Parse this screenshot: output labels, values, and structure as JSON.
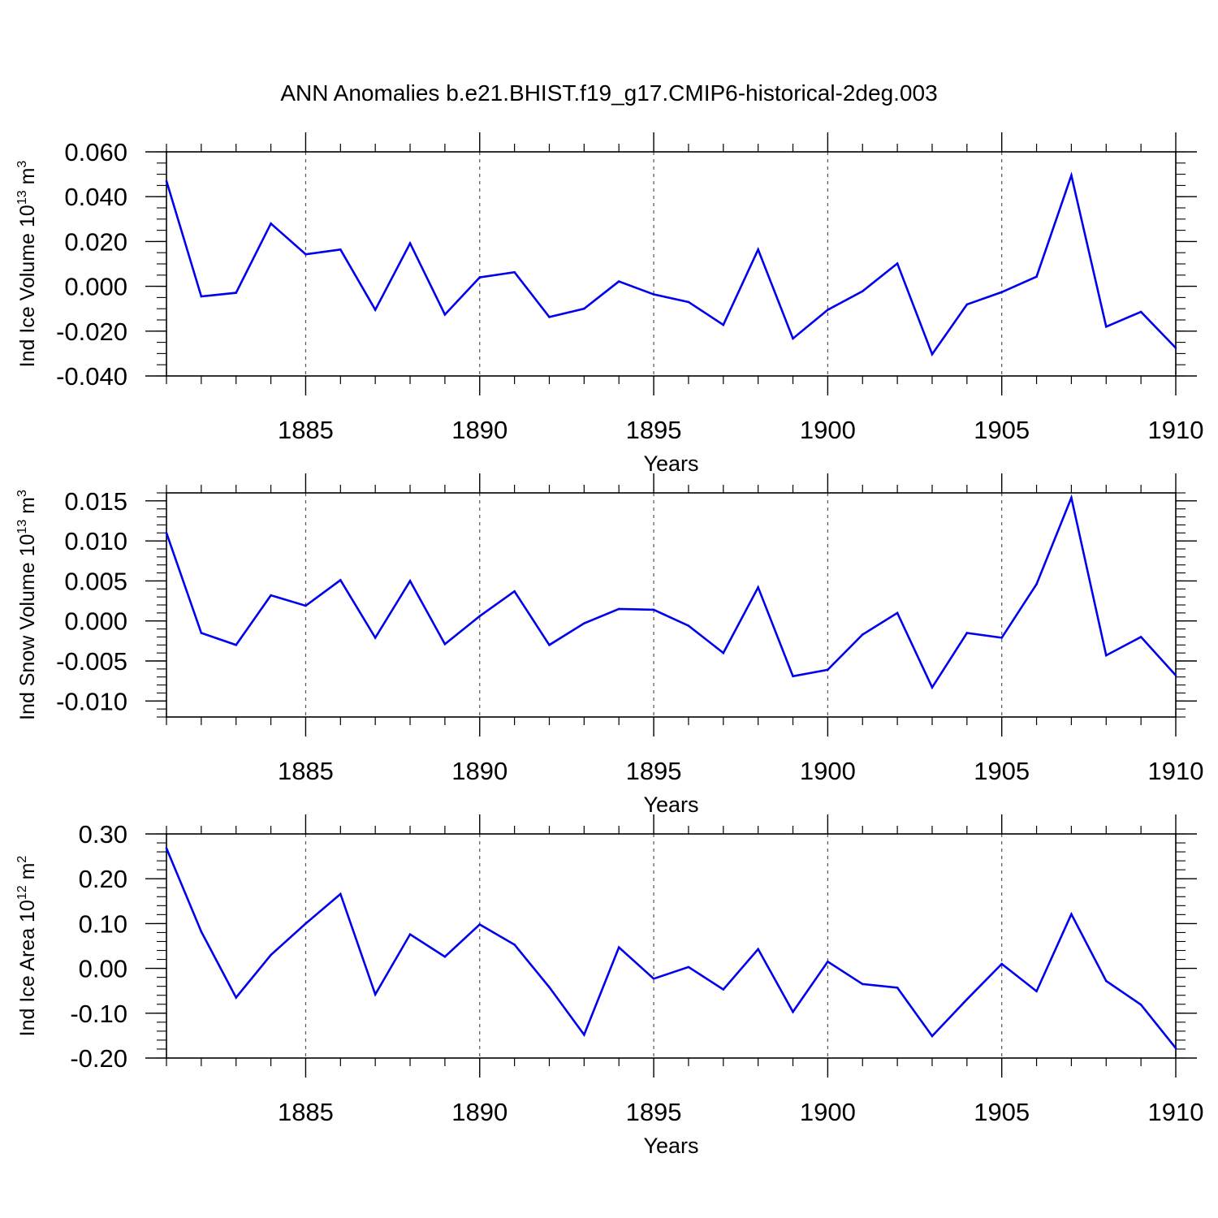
{
  "title": "ANN Anomalies b.e21.BHIST.f19_g17.CMIP6-historical-2deg.003",
  "colors": {
    "line": "#0000ee",
    "axis": "#000000",
    "grid": "#555555",
    "background": "#ffffff"
  },
  "chart_data": [
    {
      "type": "line",
      "title": "",
      "xlabel": "Years",
      "ylabel": {
        "text": "Ind Ice Volume 10",
        "exp": "13",
        "unit": " m",
        "unit_exp": "3"
      },
      "x": [
        1881,
        1882,
        1883,
        1884,
        1885,
        1886,
        1887,
        1888,
        1889,
        1890,
        1891,
        1892,
        1893,
        1894,
        1895,
        1896,
        1897,
        1898,
        1899,
        1900,
        1901,
        1902,
        1903,
        1904,
        1905,
        1906,
        1907,
        1908,
        1909,
        1910
      ],
      "series": [
        {
          "name": "Ind Ice Volume",
          "values": [
            0.047,
            -0.0045,
            -0.0029,
            0.028,
            0.0143,
            0.0164,
            -0.0105,
            0.0192,
            -0.0126,
            0.004,
            0.0063,
            -0.0137,
            -0.01,
            0.0022,
            -0.0036,
            -0.007,
            -0.0172,
            0.0164,
            -0.0233,
            -0.0105,
            -0.0022,
            0.0102,
            -0.0303,
            -0.0081,
            -0.0026,
            0.0043,
            0.0495,
            -0.018,
            -0.0114,
            -0.0275
          ]
        }
      ],
      "xlim": [
        1881,
        1910
      ],
      "ylim": [
        -0.04,
        0.06
      ],
      "x_ticks": [
        "1885",
        "1890",
        "1895",
        "1900",
        "1905",
        "1910"
      ],
      "y_ticks": [
        "0.060",
        "0.040",
        "0.020",
        "0.000",
        "-0.020",
        "-0.040"
      ],
      "grid": "x-major dashed"
    },
    {
      "type": "line",
      "title": "",
      "xlabel": "Years",
      "ylabel": {
        "text": "Ind Snow Volume 10",
        "exp": "13",
        "unit": " m",
        "unit_exp": "3"
      },
      "x": [
        1881,
        1882,
        1883,
        1884,
        1885,
        1886,
        1887,
        1888,
        1889,
        1890,
        1891,
        1892,
        1893,
        1894,
        1895,
        1896,
        1897,
        1898,
        1899,
        1900,
        1901,
        1902,
        1903,
        1904,
        1905,
        1906,
        1907,
        1908,
        1909,
        1910
      ],
      "series": [
        {
          "name": "Ind Snow Volume",
          "values": [
            0.011,
            -0.0015,
            -0.003,
            0.0032,
            0.0019,
            0.0051,
            -0.0021,
            0.005,
            -0.0029,
            0.0006,
            0.0037,
            -0.003,
            -0.0003,
            0.0015,
            0.0014,
            -0.0006,
            -0.004,
            0.0042,
            -0.0069,
            -0.0061,
            -0.0017,
            0.001,
            -0.0083,
            -0.0015,
            -0.0021,
            0.0046,
            0.0154,
            -0.0043,
            -0.002,
            -0.0068
          ]
        }
      ],
      "xlim": [
        1881,
        1910
      ],
      "ylim": [
        -0.012,
        0.016
      ],
      "x_ticks": [
        "1885",
        "1890",
        "1895",
        "1900",
        "1905",
        "1910"
      ],
      "y_ticks": [
        "0.015",
        "0.010",
        "0.005",
        "0.000",
        "-0.005",
        "-0.010"
      ],
      "grid": "x-major dashed"
    },
    {
      "type": "line",
      "title": "",
      "xlabel": "Years",
      "ylabel": {
        "text": "Ind Ice Area 10",
        "exp": "12",
        "unit": " m",
        "unit_exp": "2"
      },
      "x": [
        1881,
        1882,
        1883,
        1884,
        1885,
        1886,
        1887,
        1888,
        1889,
        1890,
        1891,
        1892,
        1893,
        1894,
        1895,
        1896,
        1897,
        1898,
        1899,
        1900,
        1901,
        1902,
        1903,
        1904,
        1905,
        1906,
        1907,
        1908,
        1909,
        1910
      ],
      "series": [
        {
          "name": "Ind Ice Area",
          "values": [
            0.268,
            0.082,
            -0.065,
            0.03,
            0.1,
            0.166,
            -0.058,
            0.076,
            0.026,
            0.098,
            0.053,
            -0.042,
            -0.148,
            0.047,
            -0.023,
            0.003,
            -0.047,
            0.043,
            -0.097,
            0.015,
            -0.035,
            -0.043,
            -0.151,
            -0.069,
            0.01,
            -0.051,
            0.121,
            -0.028,
            -0.081,
            -0.178
          ]
        }
      ],
      "xlim": [
        1881,
        1910
      ],
      "ylim": [
        -0.2,
        0.3
      ],
      "x_ticks": [
        "1885",
        "1890",
        "1895",
        "1900",
        "1905",
        "1910"
      ],
      "y_ticks": [
        "0.30",
        "0.20",
        "0.10",
        "0.00",
        "-0.10",
        "-0.20"
      ],
      "grid": "x-major dashed"
    }
  ]
}
